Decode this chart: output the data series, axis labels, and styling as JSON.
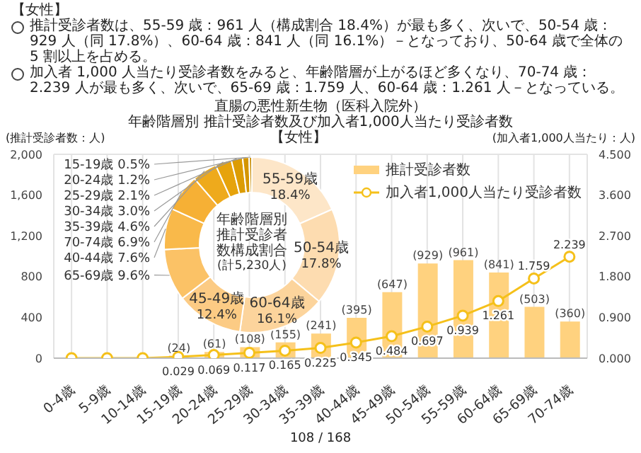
{
  "chart_data": [
    {
      "type": "bar",
      "title": "直腸の悪性新生物（医科入院外）",
      "subtitle": "年齢階層別 推計受診者数及び加入者1,000人当たり受診者数",
      "ylabel": "(推計受診者数：人)",
      "y2label": "(加入者1,000人当たり：人)",
      "annotations": [
        "【女性】",
        "推計受診者数は、55-59 歳：961 人（構成割合 18.4%）が最も多く、次いで、50-54 歳：929 人（同 17.8%）、60-64 歳：841 人（同 16.1%）－となっており、50-64 歳で全体の 5 割以上を占める。",
        "加入者 1,000 人当たり受診者数をみると、年齢階層が上がるほど多くなり、70-74 歳：2.239 人が最も多く、次いで、65-69 歳：1.759 人、60-64 歳：1.261 人－となっている。",
        "【女性】",
        "108 / 168"
      ],
      "categories": [
        "0-4歳",
        "5-9歳",
        "10-14歳",
        "15-19歳",
        "20-24歳",
        "25-29歳",
        "30-34歳",
        "35-39歳",
        "40-44歳",
        "45-49歳",
        "50-54歳",
        "55-59歳",
        "60-64歳",
        "65-69歳",
        "70-74歳"
      ],
      "series": [
        {
          "name": "推計受診者数",
          "type": "bar",
          "color": "#ffd27f",
          "values": [
            0,
            0,
            0,
            24,
            61,
            108,
            155,
            241,
            395,
            647,
            929,
            961,
            841,
            503,
            360
          ],
          "value_labels": [
            null,
            null,
            null,
            "(24)",
            "(61)",
            "(108)",
            "(155)",
            "(241)",
            "(395)",
            "(647)",
            "(929)",
            "(961)",
            "(841)",
            "(503)",
            "(360)"
          ]
        },
        {
          "name": "加入者1,000人当たり受診者数",
          "type": "line",
          "axis": "y2",
          "color": "#f5c01a",
          "marker": "circle",
          "values": [
            0,
            0,
            0,
            0.029,
            0.069,
            0.117,
            0.165,
            0.225,
            0.345,
            0.484,
            0.697,
            0.939,
            1.261,
            1.759,
            2.239
          ],
          "value_labels": [
            null,
            null,
            null,
            "0.029",
            "0.069",
            "0.117",
            "0.165",
            "0.225",
            "0.345",
            "0.484",
            "0.697",
            "0.939",
            "1.261",
            "1.759",
            "2.239"
          ]
        }
      ],
      "ylim": [
        0,
        2000
      ],
      "yticks": [
        0,
        400,
        800,
        {
          "value": 1200,
          "label": "1,200"
        },
        {
          "value": 1600,
          "label": "1,600"
        },
        {
          "value": 2000,
          "label": "2,000"
        }
      ],
      "y2lim": [
        0,
        4.5
      ],
      "y2ticks": [
        {
          "value": 0,
          "label": "0.000"
        },
        {
          "value": 0.9,
          "label": "0.900"
        },
        {
          "value": 1.8,
          "label": "1.800"
        },
        {
          "value": 2.7,
          "label": "2.700"
        },
        {
          "value": 3.6,
          "label": "3.600"
        },
        {
          "value": 4.5,
          "label": "4.500"
        }
      ],
      "grid": true,
      "legend": "top right"
    },
    {
      "type": "donut",
      "title": "年齢階層別推計受診者数構成割合",
      "annotations": [
        "(計5,230人)"
      ],
      "categories": [
        "55-59歳",
        "50-54歳",
        "60-64歳",
        "45-49歳",
        "65-69歳",
        "40-44歳",
        "70-74歳",
        "35-39歳",
        "30-34歳",
        "25-29歳",
        "20-24歳",
        "15-19歳"
      ],
      "values": [
        18.4,
        17.8,
        16.1,
        12.4,
        9.6,
        7.6,
        6.9,
        4.6,
        3.0,
        2.1,
        1.2,
        0.5
      ],
      "value_labels": [
        "18.4%",
        "17.8%",
        "16.1%",
        "12.4%",
        "9.6%",
        "7.6%",
        "6.9%",
        "4.6%",
        "3.0%",
        "2.1%",
        "1.2%",
        "0.5%"
      ],
      "colors": [
        "#fde6c8",
        "#fddcb0",
        "#fcd49c",
        "#fccb84",
        "#fbc266",
        "#f9b94a",
        "#f6b035",
        "#eeaa1c",
        "#e6a30c",
        "#dc9c04",
        "#d49500",
        "#c88c00"
      ]
    }
  ]
}
